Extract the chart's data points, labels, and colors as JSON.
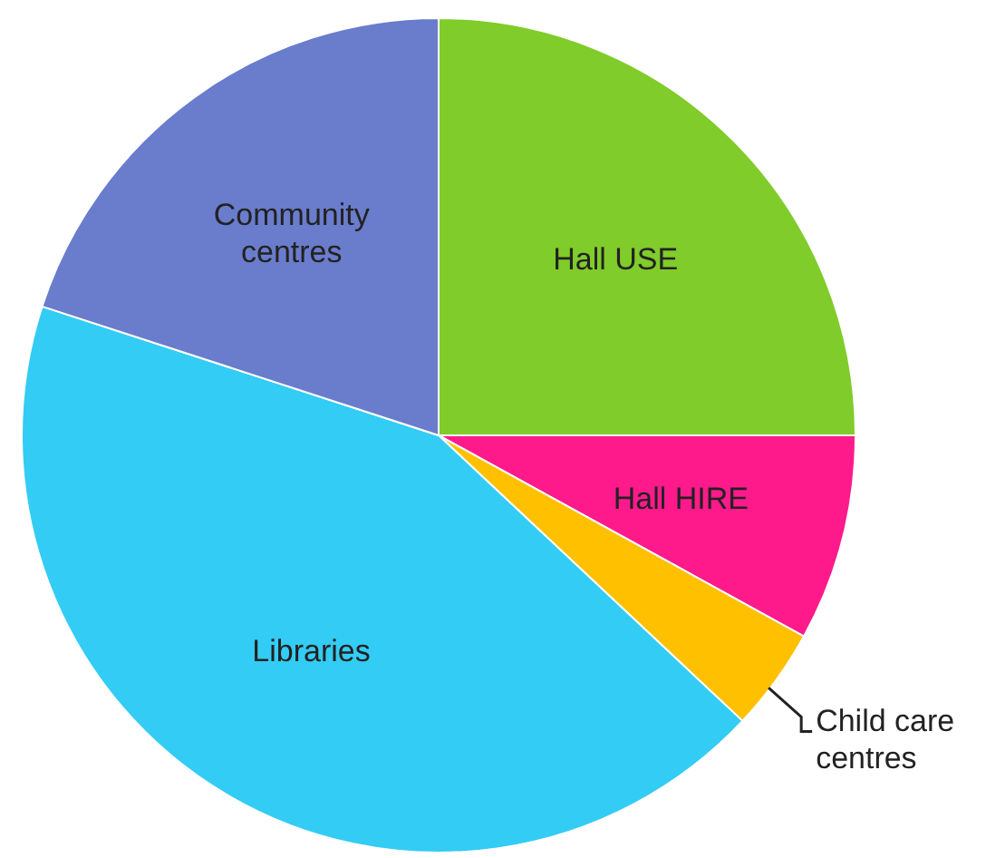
{
  "chart_data": {
    "type": "pie",
    "categories": [
      "Hall USE",
      "Hall HIRE",
      "Child care centres",
      "Libraries",
      "Community centres"
    ],
    "values": [
      25,
      8,
      4,
      43,
      20
    ],
    "colors": [
      "#80cc2a",
      "#ff1a8c",
      "#ffc000",
      "#33ccf5",
      "#6a7ccc"
    ]
  }
}
